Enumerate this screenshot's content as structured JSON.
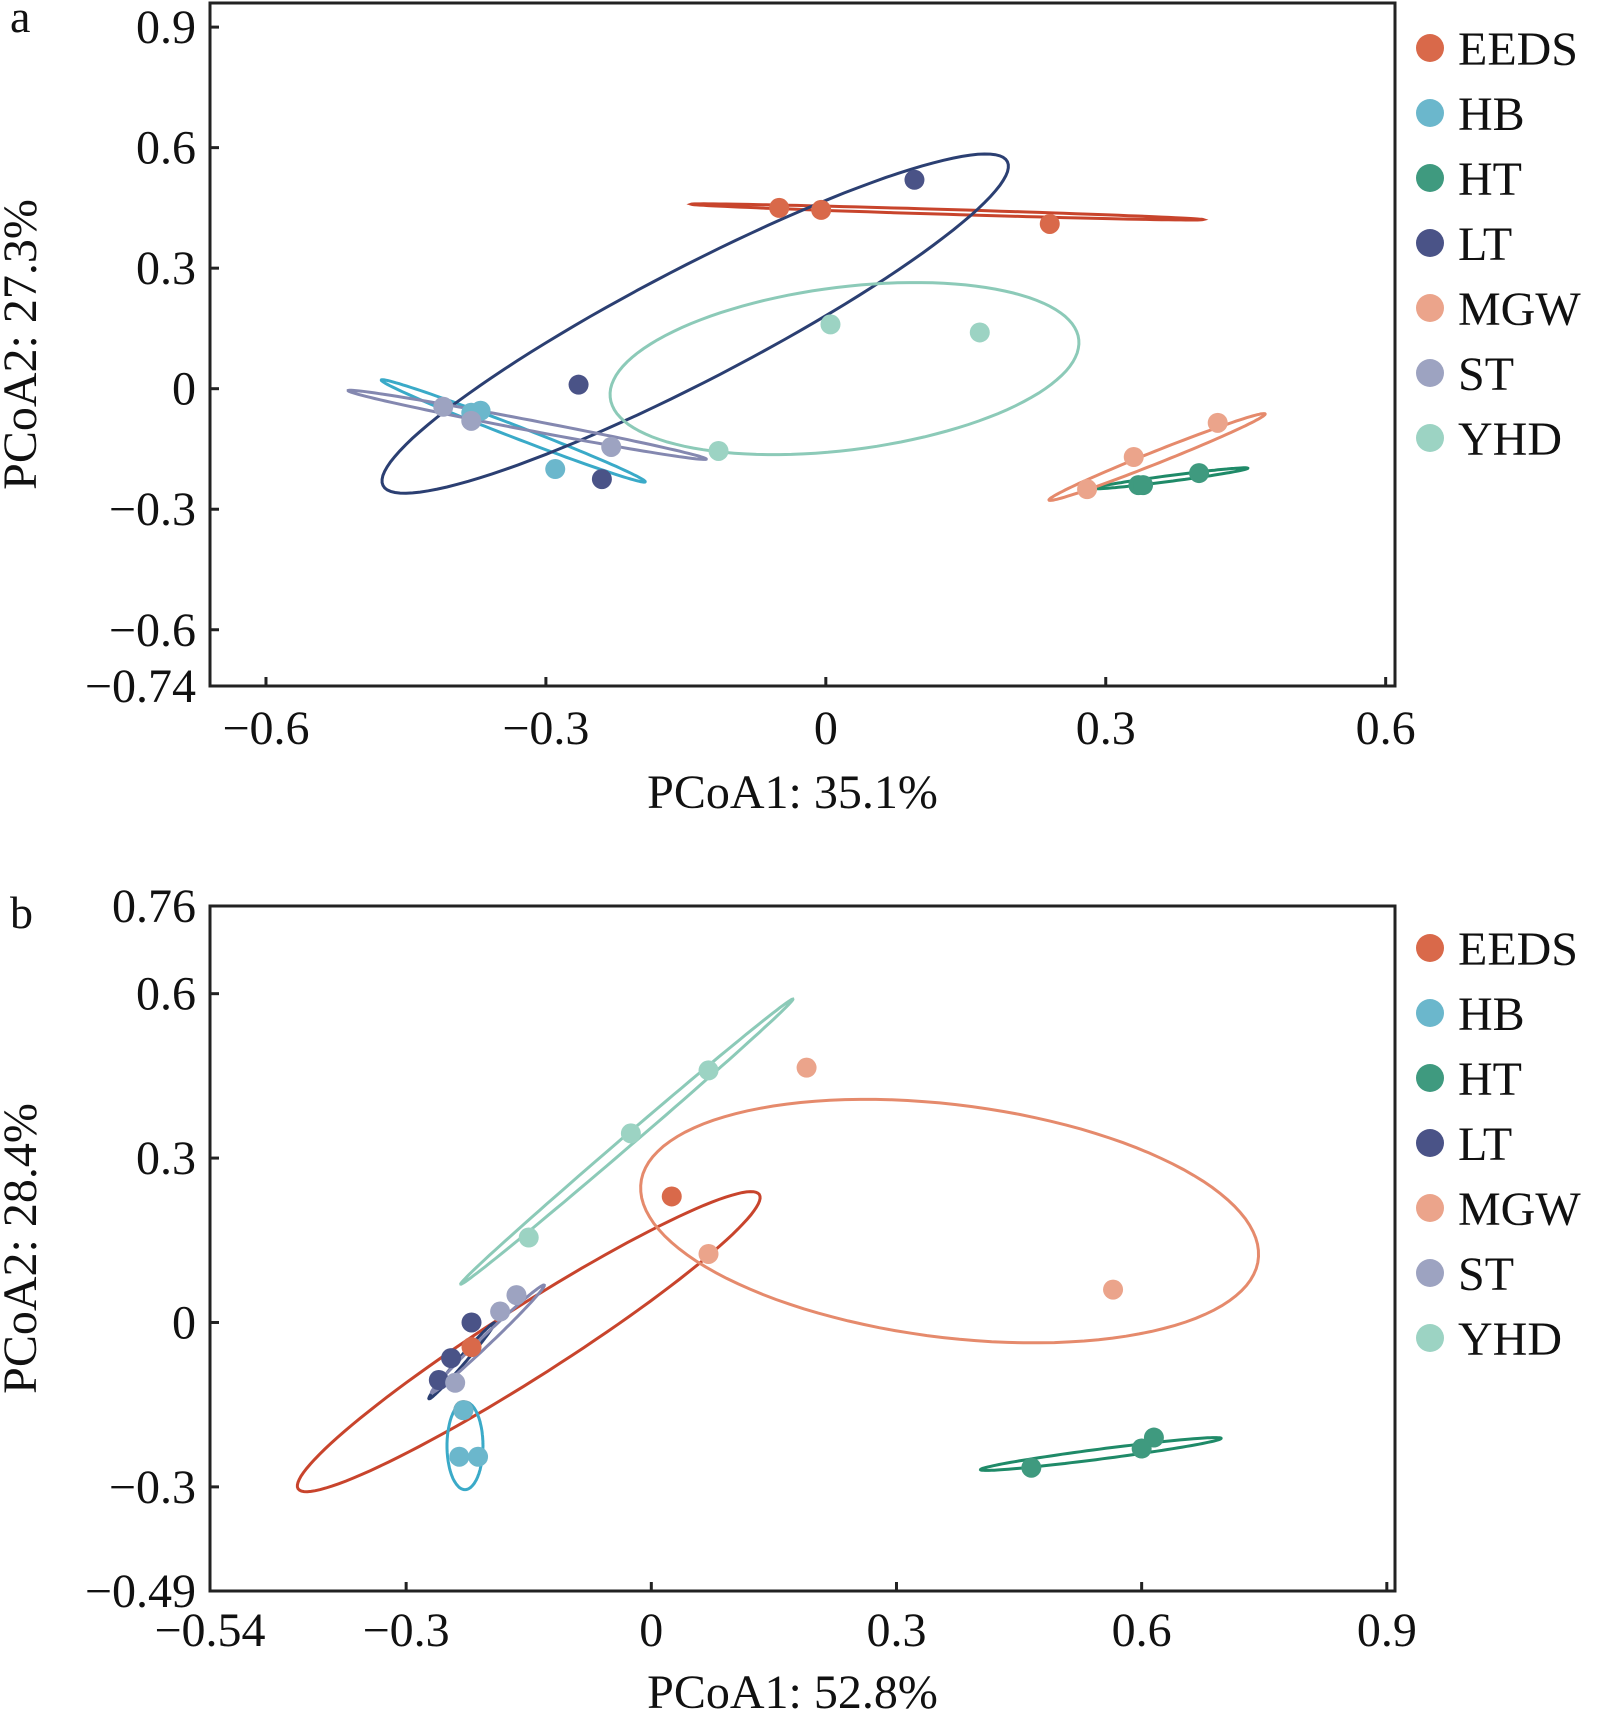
{
  "colors": {
    "EEDS": "#d9694a",
    "HB": "#6bb7cc",
    "HT": "#3f9a7f",
    "LT": "#4a5387",
    "MGW": "#eba48b",
    "ST": "#9da3c1",
    "YHD": "#9cd3c3"
  },
  "ellipse_colors": {
    "EEDS": "#c8442c",
    "HB": "#3aaac8",
    "HT": "#1f8a68",
    "LT": "#2b3f72",
    "MGW": "#e58a6c",
    "ST": "#8488b0",
    "YHD": "#8ccab8"
  },
  "chart_data": [
    {
      "panel": "a",
      "type": "scatter",
      "xlabel": "PCoA1: 35.1%",
      "ylabel": "PCoA2: 27.3%",
      "xlim": [
        -0.66,
        0.61
      ],
      "ylim": [
        -0.74,
        0.96
      ],
      "xticks": [
        -0.6,
        -0.3,
        0,
        0.3,
        0.6
      ],
      "xtick_labels": [
        "−0.6",
        "−0.3",
        "0",
        "0.3",
        "0.6"
      ],
      "yticks": [
        -0.74,
        -0.6,
        -0.3,
        0,
        0.3,
        0.6,
        0.9
      ],
      "ytick_labels": [
        "−0.74",
        "−0.6",
        "−0.3",
        "0",
        "0.3",
        "0.6",
        "0.9"
      ],
      "legend": [
        "EEDS",
        "HB",
        "HT",
        "LT",
        "MGW",
        "ST",
        "YHD"
      ],
      "series": [
        {
          "name": "EEDS",
          "points": [
            [
              -0.05,
              0.45
            ],
            [
              -0.005,
              0.445
            ],
            [
              0.24,
              0.41
            ]
          ],
          "ellipse": {
            "cx": 0.13,
            "cy": 0.44,
            "rx": 0.275,
            "ry": 0.006,
            "angle_deg": -4
          }
        },
        {
          "name": "HB",
          "points": [
            [
              -0.38,
              -0.06
            ],
            [
              -0.37,
              -0.055
            ],
            [
              -0.29,
              -0.2
            ]
          ],
          "ellipse": {
            "cx": -0.335,
            "cy": -0.105,
            "rx": 0.19,
            "ry": 0.012,
            "angle_deg": -42
          }
        },
        {
          "name": "HT",
          "points": [
            [
              0.335,
              -0.24
            ],
            [
              0.34,
              -0.24
            ],
            [
              0.4,
              -0.21
            ]
          ],
          "ellipse": {
            "cx": 0.37,
            "cy": -0.223,
            "rx": 0.086,
            "ry": 0.007,
            "angle_deg": 17
          }
        },
        {
          "name": "LT",
          "points": [
            [
              0.095,
              0.52
            ],
            [
              -0.265,
              0.01
            ],
            [
              -0.24,
              -0.225
            ]
          ],
          "ellipse": {
            "cx": -0.14,
            "cy": 0.162,
            "rx": 0.53,
            "ry": 0.1,
            "angle_deg": 52
          }
        },
        {
          "name": "MGW",
          "points": [
            [
              0.28,
              -0.25
            ],
            [
              0.33,
              -0.17
            ],
            [
              0.42,
              -0.085
            ]
          ],
          "ellipse": {
            "cx": 0.355,
            "cy": -0.17,
            "rx": 0.158,
            "ry": 0.012,
            "angle_deg": 43
          }
        },
        {
          "name": "ST",
          "points": [
            [
              -0.41,
              -0.045
            ],
            [
              -0.38,
              -0.08
            ],
            [
              -0.23,
              -0.145
            ]
          ],
          "ellipse": {
            "cx": -0.32,
            "cy": -0.09,
            "rx": 0.21,
            "ry": 0.012,
            "angle_deg": -24
          }
        },
        {
          "name": "YHD",
          "points": [
            [
              0.005,
              0.16
            ],
            [
              0.165,
              0.14
            ],
            [
              -0.115,
              -0.155
            ]
          ],
          "ellipse": {
            "cx": 0.02,
            "cy": 0.05,
            "rx": 0.27,
            "ry": 0.19,
            "angle_deg": 31
          }
        }
      ]
    },
    {
      "panel": "b",
      "type": "scatter",
      "xlabel": "PCoA1: 52.8%",
      "ylabel": "PCoA2: 28.4%",
      "xlim": [
        -0.54,
        0.91
      ],
      "ylim": [
        -0.49,
        0.76
      ],
      "xticks": [
        -0.54,
        -0.3,
        0,
        0.3,
        0.6,
        0.9
      ],
      "xtick_labels": [
        "−0.54",
        "−0.3",
        "0",
        "0.3",
        "0.6",
        "0.9"
      ],
      "yticks": [
        -0.49,
        -0.3,
        0,
        0.3,
        0.6,
        0.76
      ],
      "ytick_labels": [
        "−0.49",
        "−0.3",
        "0",
        "0.3",
        "0.6",
        "0.76"
      ],
      "legend": [
        "EEDS",
        "HB",
        "HT",
        "LT",
        "MGW",
        "ST",
        "YHD"
      ],
      "series": [
        {
          "name": "EEDS",
          "points": [
            [
              0.025,
              0.23
            ],
            [
              -0.22,
              -0.045
            ],
            [
              -0.23,
              -0.16
            ]
          ],
          "ellipse": {
            "cx": -0.15,
            "cy": -0.035,
            "rx": 0.39,
            "ry": 0.055,
            "angle_deg": 44
          }
        },
        {
          "name": "HB",
          "points": [
            [
              -0.235,
              -0.245
            ],
            [
              -0.212,
              -0.245
            ],
            [
              -0.23,
              -0.16
            ]
          ],
          "ellipse": {
            "cx": -0.228,
            "cy": -0.225,
            "rx": 0.022,
            "ry": 0.08,
            "angle_deg": 0
          }
        },
        {
          "name": "HT",
          "points": [
            [
              0.465,
              -0.265
            ],
            [
              0.6,
              -0.23
            ],
            [
              0.615,
              -0.21
            ]
          ],
          "ellipse": {
            "cx": 0.55,
            "cy": -0.24,
            "rx": 0.15,
            "ry": 0.009,
            "angle_deg": 11
          }
        },
        {
          "name": "LT",
          "points": [
            [
              -0.22,
              0
            ],
            [
              -0.245,
              -0.065
            ],
            [
              -0.26,
              -0.105
            ]
          ],
          "ellipse": {
            "cx": -0.232,
            "cy": -0.07,
            "rx": 0.08,
            "ry": 0.005,
            "angle_deg": 60
          }
        },
        {
          "name": "MGW",
          "points": [
            [
              0.19,
              0.465
            ],
            [
              0.07,
              0.125
            ],
            [
              0.565,
              0.06
            ]
          ],
          "ellipse": {
            "cx": 0.365,
            "cy": 0.185,
            "rx": 0.385,
            "ry": 0.21,
            "angle_deg": -13
          }
        },
        {
          "name": "ST",
          "points": [
            [
              -0.165,
              0.05
            ],
            [
              -0.185,
              0.02
            ],
            [
              -0.24,
              -0.11
            ]
          ],
          "ellipse": {
            "cx": -0.2,
            "cy": -0.03,
            "rx": 0.12,
            "ry": 0.007,
            "angle_deg": 55
          }
        },
        {
          "name": "YHD",
          "points": [
            [
              0.07,
              0.46
            ],
            [
              -0.025,
              0.345
            ],
            [
              -0.15,
              0.155
            ]
          ],
          "ellipse": {
            "cx": -0.03,
            "cy": 0.33,
            "rx": 0.33,
            "ry": 0.008,
            "angle_deg": 52
          }
        }
      ]
    }
  ]
}
